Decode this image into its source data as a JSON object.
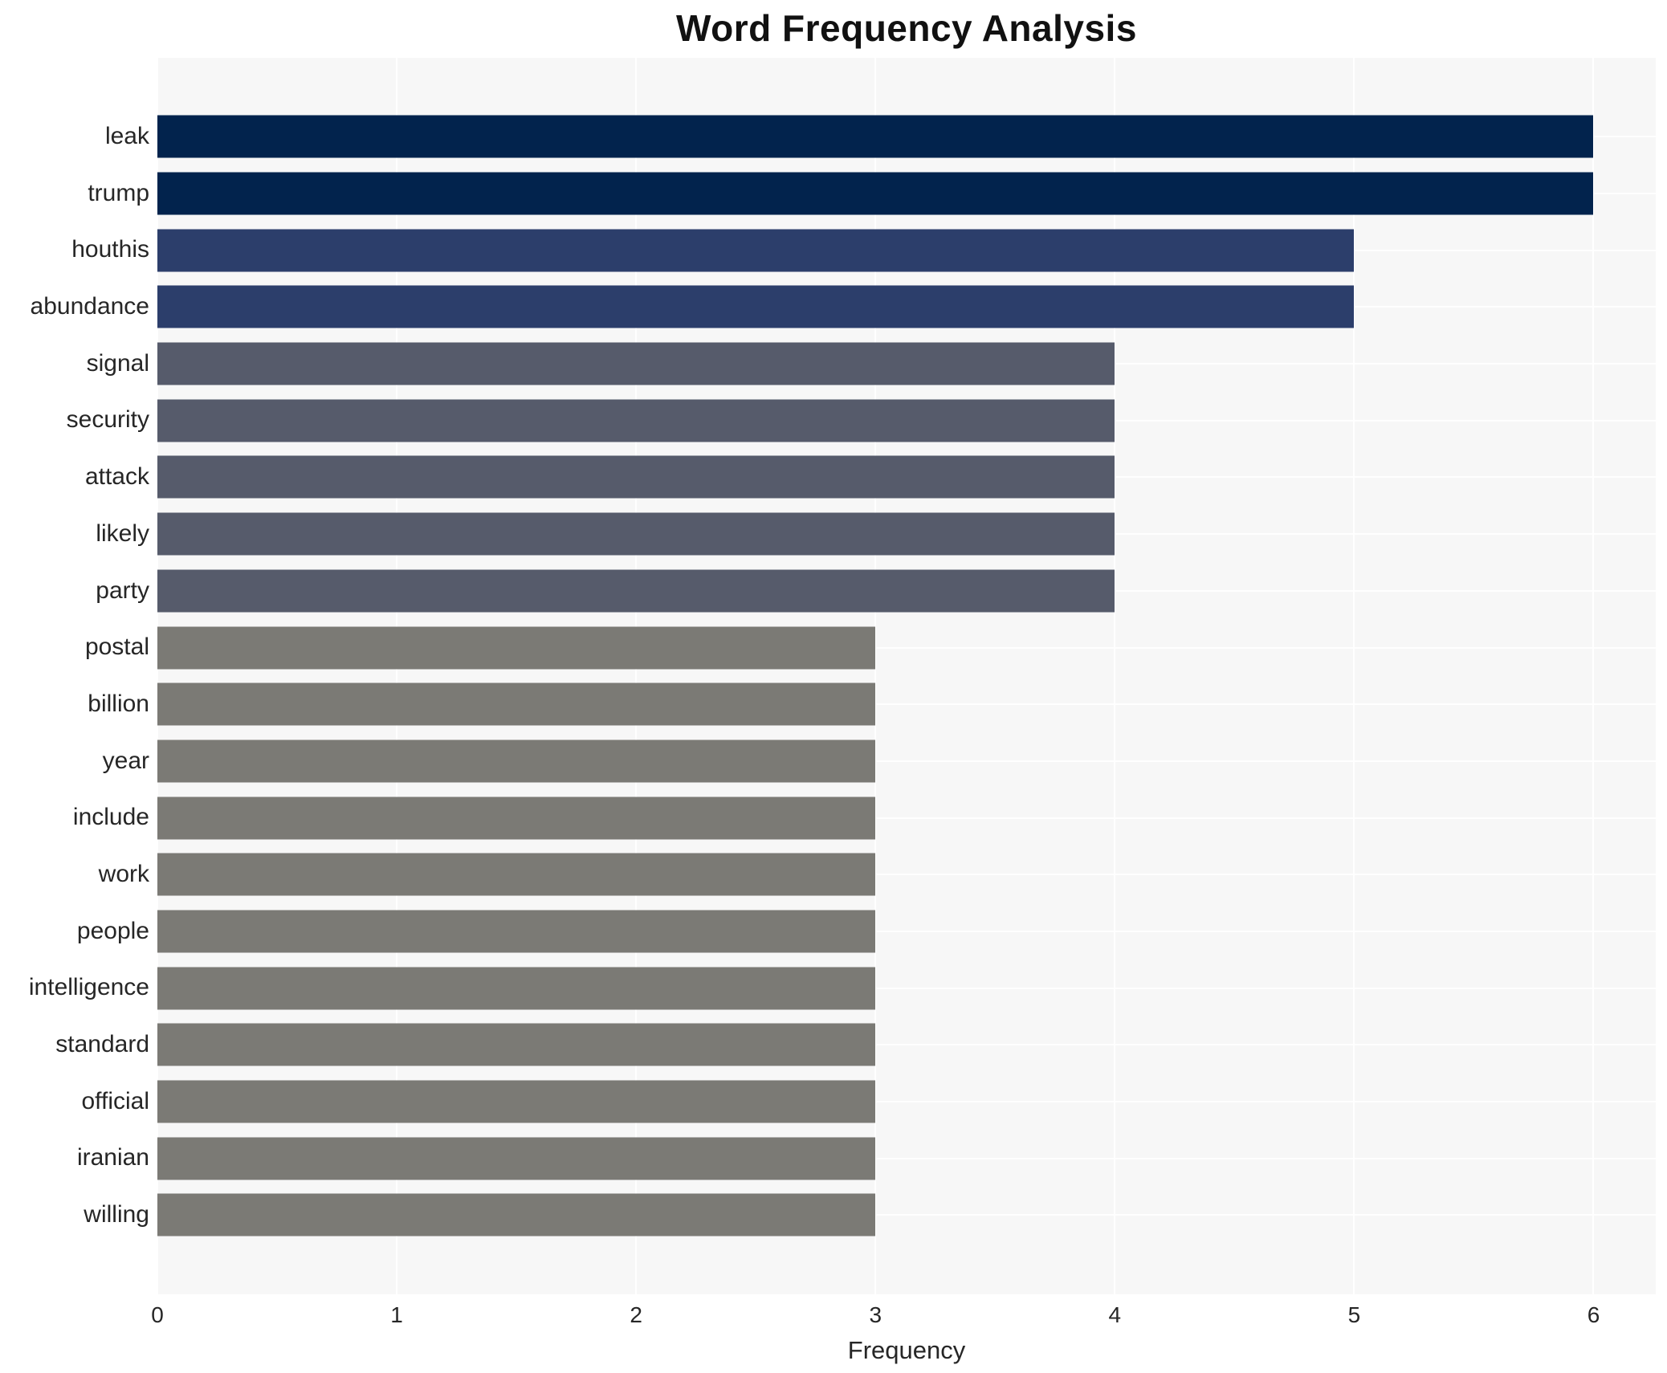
{
  "chart_data": {
    "type": "bar",
    "orientation": "horizontal",
    "title": "Word Frequency Analysis",
    "xlabel": "Frequency",
    "ylabel": "",
    "categories": [
      "leak",
      "trump",
      "houthis",
      "abundance",
      "signal",
      "security",
      "attack",
      "likely",
      "party",
      "postal",
      "billion",
      "year",
      "include",
      "work",
      "people",
      "intelligence",
      "standard",
      "official",
      "iranian",
      "willing"
    ],
    "values": [
      6,
      6,
      5,
      5,
      4,
      4,
      4,
      4,
      4,
      3,
      3,
      3,
      3,
      3,
      3,
      3,
      3,
      3,
      3,
      3
    ],
    "xlim": [
      0,
      6.26
    ],
    "xticks": [
      0,
      1,
      2,
      3,
      4,
      5,
      6
    ],
    "legend_position": "none",
    "grid": "white vertical gridlines at integer ticks and white horizontal gridlines at category centers over light gray plot background",
    "bar_height_fraction": 0.75,
    "colors_by_value": {
      "6": "#02234d",
      "5": "#2c3e6b",
      "4": "#565b6b",
      "3": "#7b7a75"
    }
  },
  "style": {
    "figure_bg": "#ffffff",
    "plot_bg": "#f7f7f7",
    "grid_color": "#ffffff",
    "title_color": "#111111",
    "label_color": "#262626",
    "tick_color": "#262626"
  }
}
